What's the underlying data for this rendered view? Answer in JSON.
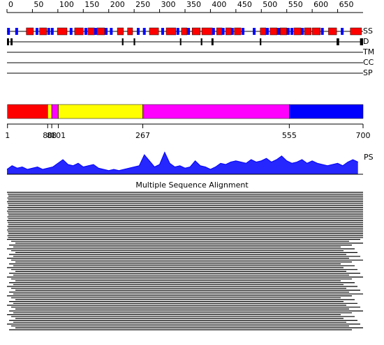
{
  "ruler": {
    "lim": [
      0,
      700
    ],
    "ticks": [
      0,
      50,
      100,
      150,
      200,
      250,
      300,
      350,
      400,
      450,
      500,
      550,
      600,
      650
    ]
  },
  "tracks": {
    "ss": {
      "label": "SS",
      "helices": [
        [
          38,
          52
        ],
        [
          64,
          78
        ],
        [
          99,
          118
        ],
        [
          133,
          150
        ],
        [
          159,
          172
        ],
        [
          177,
          192
        ],
        [
          217,
          229
        ],
        [
          237,
          247
        ],
        [
          280,
          298
        ],
        [
          313,
          332
        ],
        [
          343,
          354
        ],
        [
          364,
          380
        ],
        [
          383,
          404
        ],
        [
          412,
          423
        ],
        [
          430,
          441
        ],
        [
          447,
          460
        ],
        [
          498,
          509
        ],
        [
          517,
          531
        ],
        [
          537,
          550
        ],
        [
          564,
          578
        ],
        [
          585,
          598
        ],
        [
          600,
          616
        ],
        [
          632,
          648
        ],
        [
          675,
          697
        ]
      ],
      "strands": [
        3,
        19,
        59,
        82,
        89,
        126,
        155,
        174,
        195,
        205,
        258,
        270,
        306,
        336,
        357,
        406,
        425,
        443,
        464,
        486,
        512,
        534,
        553,
        560,
        581,
        620,
        659
      ],
      "helix_color": "#ff0000",
      "strand_color": "#0000ff"
    },
    "d": {
      "label": "D",
      "regions": [
        [
          0,
          4
        ],
        [
          7,
          11
        ],
        [
          226,
          229
        ],
        [
          249,
          252
        ],
        [
          340,
          342
        ],
        [
          381,
          384
        ],
        [
          402,
          406
        ],
        [
          497,
          500
        ],
        [
          648,
          653
        ],
        [
          694,
          700
        ]
      ]
    },
    "tm": {
      "label": "TM"
    },
    "cc": {
      "label": "CC"
    },
    "sp": {
      "label": "SP"
    }
  },
  "domains": [
    {
      "start": 1,
      "end": 80,
      "color": "#ff0000"
    },
    {
      "start": 80,
      "end": 88,
      "color": "#ffff00"
    },
    {
      "start": 88,
      "end": 101,
      "color": "#ff00ff"
    },
    {
      "start": 101,
      "end": 267,
      "color": "#ffff00"
    },
    {
      "start": 267,
      "end": 555,
      "color": "#ff00ff"
    },
    {
      "start": 555,
      "end": 700,
      "color": "#0000ff"
    }
  ],
  "ps": {
    "label": "PS",
    "color": "#0000ff",
    "lim": [
      0,
      1
    ],
    "x": [
      0,
      10,
      20,
      30,
      40,
      50,
      60,
      70,
      80,
      90,
      100,
      110,
      120,
      130,
      140,
      150,
      160,
      170,
      180,
      190,
      200,
      210,
      220,
      230,
      240,
      250,
      260,
      270,
      280,
      290,
      300,
      310,
      320,
      330,
      340,
      350,
      360,
      370,
      380,
      390,
      400,
      410,
      420,
      430,
      440,
      450,
      460,
      470,
      480,
      490,
      500,
      510,
      520,
      530,
      540,
      550,
      560,
      570,
      580,
      590,
      600,
      610,
      620,
      630,
      640,
      650,
      660,
      670,
      680,
      690
    ],
    "values": [
      0.2,
      0.35,
      0.25,
      0.3,
      0.2,
      0.25,
      0.3,
      0.2,
      0.25,
      0.3,
      0.45,
      0.6,
      0.4,
      0.35,
      0.45,
      0.3,
      0.35,
      0.4,
      0.25,
      0.2,
      0.15,
      0.2,
      0.15,
      0.2,
      0.25,
      0.3,
      0.35,
      0.8,
      0.55,
      0.3,
      0.4,
      0.9,
      0.45,
      0.3,
      0.35,
      0.25,
      0.3,
      0.55,
      0.35,
      0.3,
      0.2,
      0.3,
      0.45,
      0.4,
      0.5,
      0.55,
      0.5,
      0.45,
      0.6,
      0.5,
      0.55,
      0.65,
      0.5,
      0.6,
      0.75,
      0.55,
      0.45,
      0.5,
      0.6,
      0.45,
      0.55,
      0.45,
      0.4,
      0.35,
      0.4,
      0.45,
      0.35,
      0.5,
      0.6,
      0.5
    ]
  },
  "msa": {
    "title": "Multiple Sequence Alignment"
  }
}
